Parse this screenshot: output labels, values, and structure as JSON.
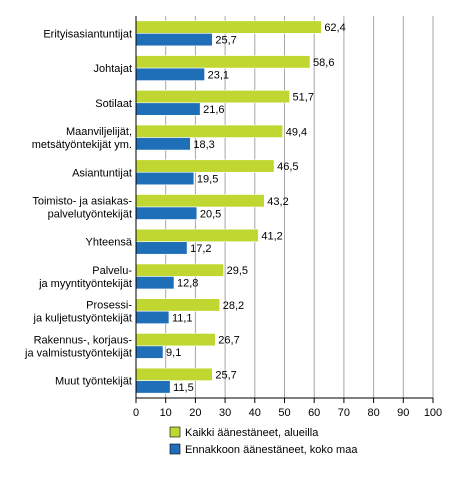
{
  "chart_data": {
    "type": "bar",
    "orientation": "horizontal",
    "title": "",
    "xlabel": "",
    "ylabel": "",
    "xlim": [
      0,
      100
    ],
    "xticks": [
      "0",
      "10",
      "20",
      "30",
      "40",
      "50",
      "60",
      "70",
      "80",
      "90",
      "100"
    ],
    "grid": true,
    "legend_position": "bottom",
    "categories": [
      [
        "Erityisasiantuntijat"
      ],
      [
        "Johtajat"
      ],
      [
        "Sotilaat"
      ],
      [
        "Maanviljelijät,",
        "metsätyöntekijät ym."
      ],
      [
        "Asiantuntijat"
      ],
      [
        "Toimisto- ja asiakas-",
        "palvelutyöntekijät"
      ],
      [
        "Yhteensä"
      ],
      [
        "Palvelu-",
        "ja myyntityöntekijät"
      ],
      [
        "Prosessi-",
        "ja kuljetustyöntekijät"
      ],
      [
        "Rakennus-, korjaus-",
        "ja valmistustyöntekijät"
      ],
      [
        "Muut työntekijät"
      ]
    ],
    "series": [
      {
        "name": "Kaikki äänestäneet, alueilla",
        "color": "#bfd730",
        "values": [
          62.4,
          58.6,
          51.7,
          49.4,
          46.5,
          43.2,
          41.2,
          29.5,
          28.2,
          26.7,
          25.7
        ],
        "labels": [
          "62,4",
          "58,6",
          "51,7",
          "49,4",
          "46,5",
          "43,2",
          "41,2",
          "29,5",
          "28,2",
          "26,7",
          "25,7"
        ]
      },
      {
        "name": "Ennakkoon äänestäneet, koko maa",
        "color": "#1e6fb8",
        "values": [
          25.7,
          23.1,
          21.6,
          18.3,
          19.5,
          20.5,
          17.2,
          12.8,
          11.1,
          9.1,
          11.5
        ],
        "labels": [
          "25,7",
          "23,1",
          "21,6",
          "18,3",
          "19,5",
          "20,5",
          "17,2",
          "12,8",
          "11,1",
          "9,1",
          "11,5"
        ]
      }
    ]
  }
}
